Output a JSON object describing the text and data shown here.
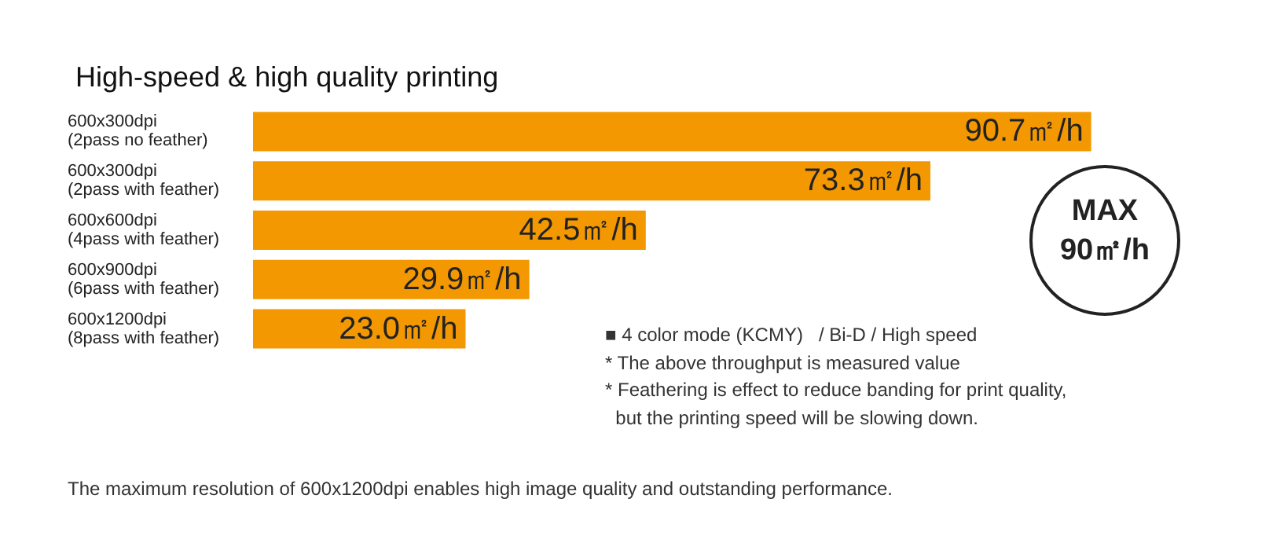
{
  "chart_data": {
    "type": "bar",
    "orientation": "horizontal",
    "title": "High-speed & high quality printing",
    "categories": [
      "600x300dpi\n(2pass no feather)",
      "600x300dpi\n(2pass with feather)",
      "600x600dpi\n(4pass with feather)",
      "600x900dpi\n(6pass with feather)",
      "600x1200dpi\n(8pass with feather)"
    ],
    "values": [
      90.7,
      73.3,
      42.5,
      29.9,
      23.0
    ],
    "value_labels": [
      "90.7㎡/h",
      "73.3㎡/h",
      "42.5㎡/h",
      "29.9㎡/h",
      "23.0㎡/h"
    ],
    "color": "#f39800",
    "annotations": [
      "MAX\n90㎡/h",
      "■ 4 color mode (KCMY)   / Bi-D / High speed",
      "* The above throughput is measured value",
      "* Feathering is effect to reduce banding for print quality,\n  but the printing speed will be slowing down.",
      "The maximum resolution of 600x1200dpi enables high image quality and outstanding performance."
    ]
  }
}
